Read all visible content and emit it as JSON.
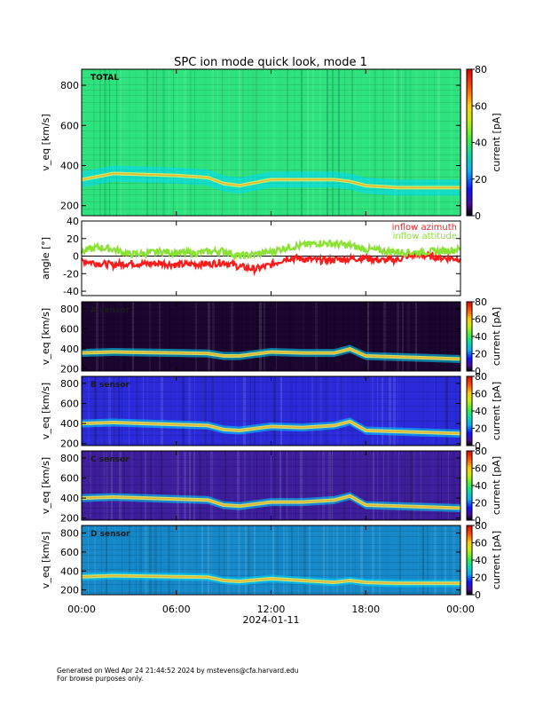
{
  "title": "SPC ion mode quick look, mode 1",
  "footer": {
    "line1": "Generated on Wed Apr 24 21:44:52 2024 by mstevens@cfa.harvard.edu",
    "line2": "For browse purposes only."
  },
  "chart_data": [
    {
      "type": "heatmap",
      "panel_label": "TOTAL",
      "ylabel": "v_eq [km/s]",
      "ylim": [
        150,
        880
      ],
      "yticks": [
        200,
        400,
        600,
        800
      ],
      "colorbar_label": "current [pA]",
      "colorbar_range": [
        0,
        80
      ],
      "colorbar_ticks": [
        0,
        20,
        40,
        60,
        80
      ],
      "background": "#2ee37e",
      "peak_band": [
        [
          0,
          330
        ],
        [
          1,
          345
        ],
        [
          2,
          360
        ],
        [
          4,
          355
        ],
        [
          6,
          350
        ],
        [
          8,
          340
        ],
        [
          9,
          310
        ],
        [
          10,
          300
        ],
        [
          12,
          330
        ],
        [
          14,
          330
        ],
        [
          16,
          330
        ],
        [
          17,
          320
        ],
        [
          18,
          300
        ],
        [
          20,
          290
        ],
        [
          22,
          290
        ],
        [
          24,
          290
        ]
      ]
    },
    {
      "type": "line",
      "ylabel": "angle [°]",
      "ylim": [
        -45,
        40
      ],
      "yticks": [
        -40,
        -20,
        0,
        20,
        40
      ],
      "series": [
        {
          "name": "inflow azimuth",
          "color": "#ff1a1a",
          "values": [
            [
              0,
              -5
            ],
            [
              1,
              -8
            ],
            [
              2,
              -10
            ],
            [
              3,
              -8
            ],
            [
              4,
              -9
            ],
            [
              5,
              -8
            ],
            [
              6,
              -10
            ],
            [
              7,
              -9
            ],
            [
              8,
              -9
            ],
            [
              9,
              -7
            ],
            [
              10,
              -12
            ],
            [
              11,
              -15
            ],
            [
              12,
              -10
            ],
            [
              13,
              -2
            ],
            [
              14,
              -3
            ],
            [
              15,
              -5
            ],
            [
              16,
              -4
            ],
            [
              17,
              -3
            ],
            [
              18,
              -2
            ],
            [
              19,
              -5
            ],
            [
              20,
              -4
            ],
            [
              21,
              2
            ],
            [
              22,
              0
            ],
            [
              23,
              -2
            ],
            [
              24,
              -3
            ]
          ]
        },
        {
          "name": "inflow attitude",
          "color": "#8ae234",
          "values": [
            [
              0,
              5
            ],
            [
              1,
              10
            ],
            [
              2,
              8
            ],
            [
              3,
              2
            ],
            [
              4,
              3
            ],
            [
              5,
              5
            ],
            [
              6,
              4
            ],
            [
              7,
              3
            ],
            [
              8,
              5
            ],
            [
              9,
              6
            ],
            [
              10,
              0
            ],
            [
              11,
              2
            ],
            [
              12,
              5
            ],
            [
              13,
              10
            ],
            [
              14,
              12
            ],
            [
              15,
              15
            ],
            [
              16,
              14
            ],
            [
              17,
              12
            ],
            [
              18,
              8
            ],
            [
              19,
              6
            ],
            [
              20,
              5
            ],
            [
              21,
              4
            ],
            [
              22,
              5
            ],
            [
              23,
              6
            ],
            [
              24,
              8
            ]
          ]
        }
      ]
    },
    {
      "type": "heatmap",
      "panel_label": "A sensor",
      "ylabel": "v_eq [km/s]",
      "ylim": [
        180,
        870
      ],
      "yticks": [
        200,
        400,
        600,
        800
      ],
      "colorbar_label": "current [pA]",
      "colorbar_range": [
        0,
        80
      ],
      "colorbar_ticks": [
        0,
        20,
        40,
        60,
        80
      ],
      "background": "#1b0630",
      "peak_band": [
        [
          0,
          360
        ],
        [
          2,
          370
        ],
        [
          4,
          365
        ],
        [
          6,
          360
        ],
        [
          8,
          355
        ],
        [
          9,
          330
        ],
        [
          10,
          330
        ],
        [
          12,
          370
        ],
        [
          14,
          360
        ],
        [
          16,
          360
        ],
        [
          17,
          400
        ],
        [
          18,
          330
        ],
        [
          20,
          320
        ],
        [
          22,
          310
        ],
        [
          24,
          300
        ]
      ]
    },
    {
      "type": "heatmap",
      "panel_label": "B sensor",
      "ylabel": "v_eq [km/s]",
      "ylim": [
        180,
        870
      ],
      "yticks": [
        200,
        400,
        600,
        800
      ],
      "colorbar_label": "current [pA]",
      "colorbar_range": [
        0,
        80
      ],
      "colorbar_ticks": [
        0,
        20,
        40,
        60,
        80
      ],
      "background": "#2b2ad8",
      "peak_band": [
        [
          0,
          400
        ],
        [
          2,
          410
        ],
        [
          4,
          400
        ],
        [
          6,
          390
        ],
        [
          8,
          380
        ],
        [
          9,
          340
        ],
        [
          10,
          330
        ],
        [
          12,
          370
        ],
        [
          14,
          360
        ],
        [
          16,
          380
        ],
        [
          17,
          420
        ],
        [
          18,
          330
        ],
        [
          20,
          320
        ],
        [
          22,
          310
        ],
        [
          24,
          300
        ]
      ]
    },
    {
      "type": "heatmap",
      "panel_label": "C sensor",
      "ylabel": "v_eq [km/s]",
      "ylim": [
        180,
        870
      ],
      "yticks": [
        200,
        400,
        600,
        800
      ],
      "colorbar_label": "current [pA]",
      "colorbar_range": [
        0,
        80
      ],
      "colorbar_ticks": [
        0,
        20,
        40,
        60,
        80
      ],
      "background": "#3d1d9a",
      "peak_band": [
        [
          0,
          400
        ],
        [
          2,
          410
        ],
        [
          4,
          400
        ],
        [
          6,
          390
        ],
        [
          8,
          380
        ],
        [
          9,
          330
        ],
        [
          10,
          320
        ],
        [
          12,
          360
        ],
        [
          14,
          360
        ],
        [
          16,
          380
        ],
        [
          17,
          420
        ],
        [
          18,
          330
        ],
        [
          20,
          320
        ],
        [
          22,
          310
        ],
        [
          24,
          300
        ]
      ]
    },
    {
      "type": "heatmap",
      "panel_label": "D sensor",
      "ylabel": "v_eq [km/s]",
      "ylim": [
        150,
        880
      ],
      "yticks": [
        200,
        400,
        600,
        800
      ],
      "colorbar_label": "current [pA]",
      "colorbar_range": [
        0,
        80
      ],
      "colorbar_ticks": [
        0,
        20,
        40,
        60,
        80
      ],
      "background": "#1688c8",
      "peak_band": [
        [
          0,
          340
        ],
        [
          2,
          350
        ],
        [
          4,
          345
        ],
        [
          6,
          340
        ],
        [
          8,
          335
        ],
        [
          9,
          300
        ],
        [
          10,
          290
        ],
        [
          12,
          320
        ],
        [
          14,
          300
        ],
        [
          16,
          280
        ],
        [
          17,
          300
        ],
        [
          18,
          280
        ],
        [
          20,
          270
        ],
        [
          22,
          270
        ],
        [
          24,
          270
        ]
      ]
    }
  ],
  "x_axis": {
    "range": [
      0,
      24
    ],
    "ticks": [
      0,
      6,
      12,
      18,
      24
    ],
    "tick_labels": [
      "00:00",
      "06:00",
      "12:00",
      "18:00",
      "00:00"
    ],
    "xlabel": "2024-01-11"
  },
  "colors": {
    "frame": "#000000",
    "zero_line": "#000000"
  }
}
